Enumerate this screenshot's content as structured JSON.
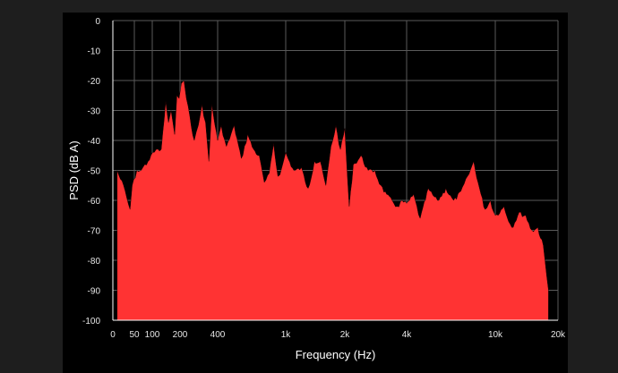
{
  "chart_data": {
    "type": "area",
    "xlabel": "Frequency (Hz)",
    "ylabel": "PSD (dB A)",
    "x_scale": "mel-like",
    "x_ticks": [
      0,
      50,
      100,
      200,
      400,
      1000,
      2000,
      4000,
      10000,
      20000
    ],
    "x_tick_labels": [
      "0",
      "50",
      "100",
      "200",
      "400",
      "1k",
      "2k",
      "4k",
      "10k",
      "20k"
    ],
    "y_ticks": [
      0,
      -10,
      -20,
      -30,
      -40,
      -50,
      -60,
      -70,
      -80,
      -90,
      -100
    ],
    "ylim": [
      -100,
      0
    ],
    "grid": true,
    "colors": {
      "fill": "#ff3333",
      "grid": "#5a5a5a",
      "text": "#e6e6e6",
      "background": "#000000"
    },
    "series": [
      {
        "x": [
          10,
          25,
          40,
          45,
          55,
          65,
          75,
          85,
          95,
          110,
          125,
          140,
          150,
          160,
          175,
          185,
          195,
          205,
          215,
          225,
          240,
          260,
          280,
          300,
          320,
          340,
          360,
          400,
          420,
          450,
          500,
          550,
          600,
          650,
          700,
          750,
          800,
          850,
          900,
          950,
          1000,
          1100,
          1200,
          1300,
          1400,
          1500,
          1600,
          1700,
          1800,
          1900,
          2000,
          2100,
          2200,
          2400,
          2600,
          2800,
          3000,
          3200,
          3400,
          3600,
          3800,
          4000,
          4300,
          4600,
          5000,
          5500,
          6000,
          6500,
          7000,
          7500,
          8000,
          8500,
          9000,
          9500,
          10000,
          11000,
          12000,
          13000,
          14000,
          15000,
          16000,
          17000,
          18000
        ],
        "values": [
          -50,
          -55,
          -63,
          -55,
          -50,
          -50,
          -48,
          -47,
          -45,
          -43,
          -43,
          -27,
          -34,
          -30,
          -38,
          -25,
          -26,
          -21,
          -20,
          -26,
          -32,
          -40,
          -35,
          -28,
          -34,
          -47,
          -28,
          -40,
          -35,
          -42,
          -35,
          -46,
          -38,
          -43,
          -45,
          -54,
          -51,
          -41,
          -52,
          -49,
          -44,
          -50,
          -49,
          -56,
          -47,
          -47,
          -55,
          -42,
          -35,
          -43,
          -36,
          -62,
          -48,
          -45,
          -50,
          -50,
          -55,
          -58,
          -60,
          -62,
          -60,
          -61,
          -58,
          -66,
          -56,
          -60,
          -56,
          -60,
          -57,
          -52,
          -47,
          -56,
          -63,
          -60,
          -65,
          -62,
          -69,
          -64,
          -65,
          -70,
          -69,
          -75,
          -90
        ]
      }
    ]
  }
}
